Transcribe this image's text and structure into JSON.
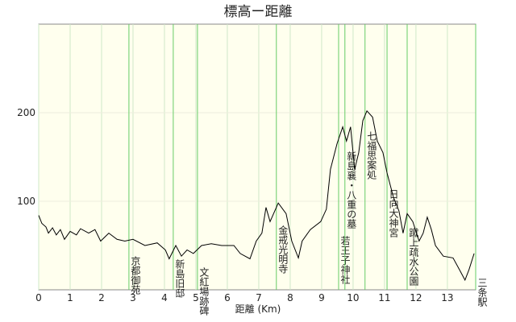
{
  "chart_data": {
    "type": "line",
    "title": "標高ー距離",
    "x_label": "距離 (Km)",
    "xlim": [
      0,
      13.9
    ],
    "xticks": [
      0,
      1,
      2,
      3,
      4,
      5,
      6,
      7,
      8,
      9,
      10,
      11,
      12,
      13
    ],
    "ylim": [
      0,
      300
    ],
    "yticks": [
      100,
      200
    ],
    "grid": true,
    "color": "#000000",
    "x": [
      0,
      0.1,
      0.23,
      0.31,
      0.44,
      0.56,
      0.69,
      0.82,
      1.0,
      1.2,
      1.33,
      1.59,
      1.79,
      1.97,
      2.23,
      2.49,
      2.74,
      3.0,
      3.38,
      3.77,
      4.03,
      4.15,
      4.36,
      4.54,
      4.72,
      4.92,
      5.18,
      5.49,
      5.82,
      6.21,
      6.41,
      6.72,
      6.92,
      7.1,
      7.23,
      7.36,
      7.62,
      7.87,
      8.05,
      8.26,
      8.38,
      8.64,
      8.97,
      9.15,
      9.28,
      9.49,
      9.67,
      9.79,
      9.92,
      10.05,
      10.18,
      10.31,
      10.44,
      10.62,
      10.77,
      10.95,
      11.08,
      11.28,
      11.46,
      11.59,
      11.72,
      11.9,
      12.1,
      12.23,
      12.36,
      12.49,
      12.62,
      12.87,
      13.18,
      13.38,
      13.56,
      13.69,
      13.85
    ],
    "values": [
      84,
      75,
      71,
      64,
      70,
      62,
      68,
      57,
      66,
      62,
      69,
      64,
      68,
      55,
      64,
      57,
      55,
      57,
      50,
      53,
      45,
      35,
      50,
      38,
      45,
      41,
      50,
      52,
      50,
      50,
      41,
      35,
      55,
      64,
      93,
      77,
      98,
      86,
      55,
      36,
      55,
      68,
      77,
      91,
      136,
      165,
      184,
      168,
      184,
      136,
      155,
      191,
      202,
      195,
      168,
      155,
      132,
      105,
      89,
      64,
      86,
      77,
      55,
      64,
      82,
      68,
      50,
      38,
      36,
      23,
      11,
      23,
      41
    ],
    "annotations": [
      {
        "label": "京都御苑",
        "x": 2.87
      },
      {
        "label": "新島旧邸",
        "x": 4.28
      },
      {
        "label": "文紅場跡碑",
        "x": 5.05
      },
      {
        "label": "金戒光明寺",
        "x": 7.56
      },
      {
        "label": "若王子神社",
        "x": 9.54
      },
      {
        "label": "新島襄・八重の墓",
        "x": 9.74
      },
      {
        "label": "七福思案処",
        "x": 10.38
      },
      {
        "label": "日向大神宮",
        "x": 11.08
      },
      {
        "label": "蹴上疏水公園",
        "x": 11.72
      },
      {
        "label": "三条駅",
        "x": 13.9
      }
    ]
  }
}
